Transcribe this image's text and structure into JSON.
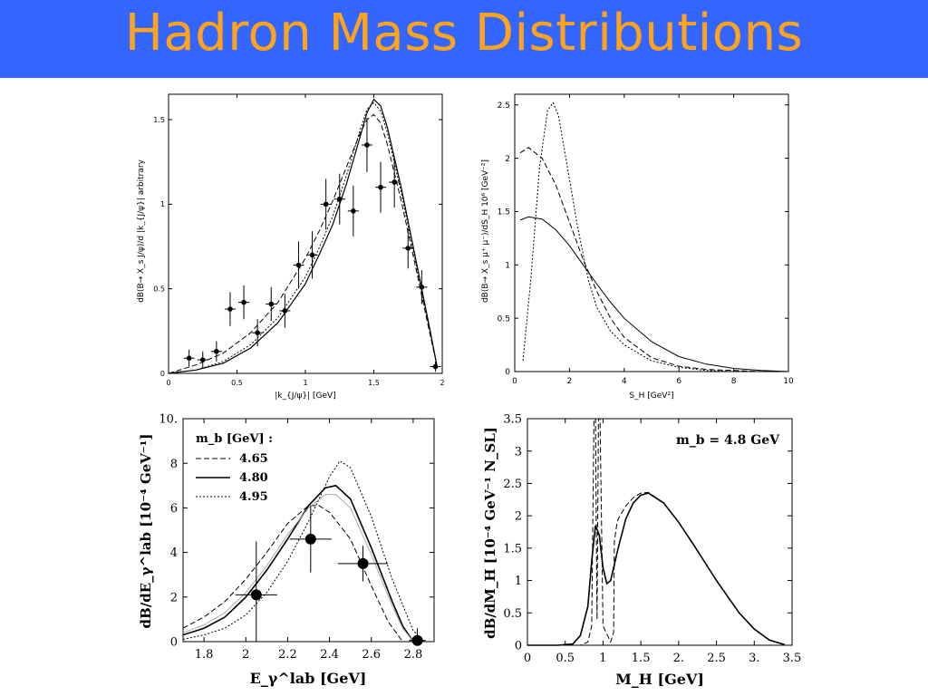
{
  "slide": {
    "title": "Hadron Mass Distributions"
  },
  "colors": {
    "title_bar": "#3366ff",
    "title_text": "#ffa31a",
    "curve": "#000000"
  },
  "chart_data": [
    {
      "type": "scatter",
      "xlabel": "|k_{J/ψ}| [GeV]",
      "ylabel": "dB(B→ X_s J/ψ)/d |k_{J/ψ}|   arbitrary",
      "xlim": [
        0,
        2
      ],
      "ylim": [
        0,
        1.65
      ],
      "xticks": [
        "0",
        "0.5",
        "1",
        "1.5",
        "2"
      ],
      "yticks": [
        "0",
        "0.5",
        "1",
        "1.5"
      ],
      "points": [
        {
          "x": 0.15,
          "y": 0.09,
          "yerr": 0.05
        },
        {
          "x": 0.25,
          "y": 0.08,
          "yerr": 0.05
        },
        {
          "x": 0.35,
          "y": 0.13,
          "yerr": 0.06
        },
        {
          "x": 0.45,
          "y": 0.38,
          "yerr": 0.1
        },
        {
          "x": 0.55,
          "y": 0.42,
          "yerr": 0.1
        },
        {
          "x": 0.65,
          "y": 0.24,
          "yerr": 0.08
        },
        {
          "x": 0.75,
          "y": 0.41,
          "yerr": 0.1
        },
        {
          "x": 0.85,
          "y": 0.37,
          "yerr": 0.1
        },
        {
          "x": 0.95,
          "y": 0.64,
          "yerr": 0.14
        },
        {
          "x": 1.05,
          "y": 0.7,
          "yerr": 0.14
        },
        {
          "x": 1.15,
          "y": 1.0,
          "yerr": 0.15
        },
        {
          "x": 1.25,
          "y": 1.03,
          "yerr": 0.15
        },
        {
          "x": 1.35,
          "y": 0.96,
          "yerr": 0.15
        },
        {
          "x": 1.45,
          "y": 1.35,
          "yerr": 0.16
        },
        {
          "x": 1.55,
          "y": 1.1,
          "yerr": 0.15
        },
        {
          "x": 1.65,
          "y": 1.13,
          "yerr": 0.15
        },
        {
          "x": 1.75,
          "y": 0.74,
          "yerr": 0.12
        },
        {
          "x": 1.85,
          "y": 0.51,
          "yerr": 0.1
        },
        {
          "x": 1.95,
          "y": 0.04,
          "yerr": 0.03
        }
      ],
      "series": [
        {
          "style": "solid",
          "x": [
            0,
            0.2,
            0.4,
            0.6,
            0.8,
            1.0,
            1.1,
            1.2,
            1.3,
            1.4,
            1.45,
            1.5,
            1.55,
            1.6,
            1.7,
            1.8,
            1.9,
            1.96
          ],
          "y": [
            0,
            0.02,
            0.06,
            0.15,
            0.3,
            0.53,
            0.7,
            0.88,
            1.12,
            1.4,
            1.54,
            1.62,
            1.58,
            1.45,
            1.1,
            0.7,
            0.3,
            0.05
          ]
        },
        {
          "style": "dotted",
          "x": [
            0,
            0.2,
            0.4,
            0.6,
            0.8,
            1.0,
            1.1,
            1.2,
            1.3,
            1.4,
            1.45,
            1.5,
            1.55,
            1.6,
            1.7,
            1.8,
            1.9,
            1.96
          ],
          "y": [
            0,
            0.02,
            0.07,
            0.17,
            0.33,
            0.57,
            0.74,
            0.93,
            1.17,
            1.44,
            1.56,
            1.6,
            1.55,
            1.42,
            1.07,
            0.68,
            0.29,
            0.05
          ]
        },
        {
          "style": "dashed",
          "x": [
            0,
            0.2,
            0.4,
            0.6,
            0.8,
            1.0,
            1.1,
            1.2,
            1.3,
            1.4,
            1.45,
            1.5,
            1.55,
            1.6,
            1.7,
            1.8,
            1.9,
            1.96
          ],
          "y": [
            0,
            0.05,
            0.12,
            0.24,
            0.42,
            0.68,
            0.84,
            1.02,
            1.22,
            1.42,
            1.5,
            1.53,
            1.48,
            1.35,
            1.02,
            0.65,
            0.27,
            0.05
          ]
        }
      ]
    },
    {
      "type": "line",
      "xlabel": "S_H [GeV²]",
      "ylabel": "dB(B→ X_s μ⁺ μ⁻)/dS_H 10⁶ [GeV⁻²]",
      "xlim": [
        0,
        10
      ],
      "ylim": [
        0,
        2.6
      ],
      "xticks": [
        "0",
        "2",
        "4",
        "6",
        "8",
        "10"
      ],
      "yticks": [
        "0",
        "0.5",
        "1",
        "1.5",
        "2",
        "2.5"
      ],
      "series": [
        {
          "style": "solid",
          "x": [
            0.2,
            0.5,
            1,
            1.5,
            2,
            2.5,
            3,
            3.5,
            4,
            5,
            6,
            7,
            8,
            9,
            10
          ],
          "y": [
            1.42,
            1.45,
            1.43,
            1.33,
            1.18,
            1.0,
            0.82,
            0.65,
            0.5,
            0.28,
            0.14,
            0.07,
            0.03,
            0.01,
            0
          ]
        },
        {
          "style": "dashed",
          "x": [
            0.2,
            0.5,
            1,
            1.5,
            2,
            2.5,
            3,
            3.5,
            4,
            5,
            6,
            7,
            8,
            9,
            10
          ],
          "y": [
            2.05,
            2.1,
            2.0,
            1.75,
            1.4,
            1.05,
            0.75,
            0.5,
            0.32,
            0.13,
            0.05,
            0.02,
            0.01,
            0,
            0
          ]
        },
        {
          "style": "dotted",
          "x": [
            0.3,
            0.6,
            0.9,
            1.2,
            1.4,
            1.6,
            1.9,
            2.3,
            2.7,
            3.0,
            3.5,
            4,
            5,
            6,
            7,
            8
          ],
          "y": [
            0.1,
            0.9,
            1.9,
            2.45,
            2.52,
            2.4,
            1.95,
            1.35,
            0.85,
            0.6,
            0.38,
            0.25,
            0.1,
            0.04,
            0.01,
            0
          ]
        }
      ]
    },
    {
      "type": "scatter",
      "xlabel": "E_γ^lab [GeV]",
      "ylabel": "dB/dE_γ^lab [10⁻⁴ GeV⁻¹]",
      "xlim": [
        1.7,
        2.9
      ],
      "ylim": [
        0,
        10
      ],
      "xticks": [
        "1.8",
        "2",
        "2.2",
        "2.4",
        "2.6",
        "2.8"
      ],
      "yticks": [
        "0",
        "2",
        "4",
        "6",
        "8",
        "10."
      ],
      "legend": {
        "header": "m_b [GeV] :",
        "entries": [
          {
            "label": "4.65",
            "style": "dashed"
          },
          {
            "label": "4.80",
            "style": "solid"
          },
          {
            "label": "4.95",
            "style": "dotted"
          }
        ]
      },
      "points": [
        {
          "x": 2.05,
          "y": 2.1,
          "xerr": 0.1,
          "yerr": 2.4
        },
        {
          "x": 2.31,
          "y": 4.6,
          "xerr": 0.1,
          "yerr": 1.5
        },
        {
          "x": 2.56,
          "y": 3.5,
          "xerr": 0.12,
          "yerr": 0.8
        },
        {
          "x": 2.82,
          "y": 0.05,
          "xerr": 0.04,
          "yerr": 0.55
        }
      ],
      "series": [
        {
          "style": "solid",
          "x": [
            1.7,
            1.8,
            1.9,
            2.0,
            2.1,
            2.2,
            2.3,
            2.38,
            2.43,
            2.5,
            2.6,
            2.7,
            2.75,
            2.8
          ],
          "y": [
            0.3,
            0.6,
            1.1,
            2.0,
            3.2,
            4.6,
            6.1,
            6.9,
            7.0,
            6.4,
            4.2,
            1.8,
            0.7,
            0
          ]
        },
        {
          "style": "dashed",
          "x": [
            1.7,
            1.8,
            1.9,
            2.0,
            2.1,
            2.2,
            2.3,
            2.35,
            2.4,
            2.5,
            2.6,
            2.68,
            2.75
          ],
          "y": [
            0.6,
            1.1,
            1.8,
            2.8,
            4.0,
            5.3,
            6.1,
            6.1,
            5.8,
            4.6,
            2.5,
            0.9,
            0
          ]
        },
        {
          "style": "dotted",
          "x": [
            1.7,
            1.8,
            1.9,
            2.0,
            2.1,
            2.2,
            2.3,
            2.4,
            2.45,
            2.5,
            2.6,
            2.7,
            2.8,
            2.85
          ],
          "y": [
            0.1,
            0.3,
            0.6,
            1.2,
            2.2,
            3.6,
            5.4,
            7.4,
            8.1,
            7.8,
            5.6,
            2.8,
            0.5,
            0
          ]
        },
        {
          "style": "grey",
          "x": [
            1.7,
            1.8,
            1.9,
            2.0,
            2.1,
            2.2,
            2.3,
            2.38,
            2.43,
            2.5,
            2.6,
            2.7,
            2.75,
            2.8
          ],
          "y": [
            0.4,
            0.75,
            1.3,
            2.2,
            3.4,
            4.8,
            6.0,
            6.6,
            6.6,
            6.0,
            3.9,
            1.6,
            0.6,
            0
          ]
        }
      ]
    },
    {
      "type": "line",
      "xlabel": "M_H [GeV]",
      "ylabel": "dB/dM_H [10⁻⁴ GeV⁻¹ N_SL]",
      "xlim": [
        0,
        3.5
      ],
      "ylim": [
        0,
        3.5
      ],
      "xticks": [
        "0",
        "0.5",
        "1",
        "1.5",
        "2.",
        "2.5",
        "3.",
        "3.5"
      ],
      "yticks": [
        "0",
        "0.5",
        "1",
        "1.5",
        "2",
        "2.5",
        "3",
        "3.5"
      ],
      "annotation": "m_b = 4.8 GeV",
      "series": [
        {
          "style": "solid",
          "x": [
            0,
            0.4,
            0.6,
            0.7,
            0.8,
            0.85,
            0.9,
            0.95,
            1.0,
            1.05,
            1.1,
            1.2,
            1.3,
            1.4,
            1.5,
            1.6,
            1.8,
            2.0,
            2.2,
            2.5,
            2.8,
            3.0,
            3.2,
            3.4
          ],
          "y": [
            0,
            0,
            0.02,
            0.15,
            0.6,
            1.3,
            1.85,
            1.7,
            1.2,
            0.95,
            1.0,
            1.5,
            1.95,
            2.2,
            2.32,
            2.35,
            2.2,
            1.9,
            1.55,
            1.0,
            0.5,
            0.25,
            0.08,
            0.01
          ]
        },
        {
          "style": "dashed",
          "x": [
            0,
            0.7,
            0.8,
            0.85,
            0.88,
            0.9,
            0.92,
            0.94,
            0.96,
            1.0,
            1.1,
            1.14,
            1.15,
            1.18,
            1.2,
            1.3,
            1.4,
            1.5,
            1.6,
            1.8,
            2.0,
            2.2,
            2.5,
            2.8,
            3.0,
            3.2,
            3.4
          ],
          "y": [
            0,
            0,
            0.05,
            0.3,
            3.5,
            3.5,
            0.4,
            3.5,
            3.5,
            0.3,
            0.05,
            0.2,
            1.6,
            1.85,
            1.95,
            2.15,
            2.28,
            2.35,
            2.36,
            2.2,
            1.9,
            1.55,
            1.0,
            0.5,
            0.25,
            0.08,
            0.01
          ]
        }
      ]
    }
  ]
}
